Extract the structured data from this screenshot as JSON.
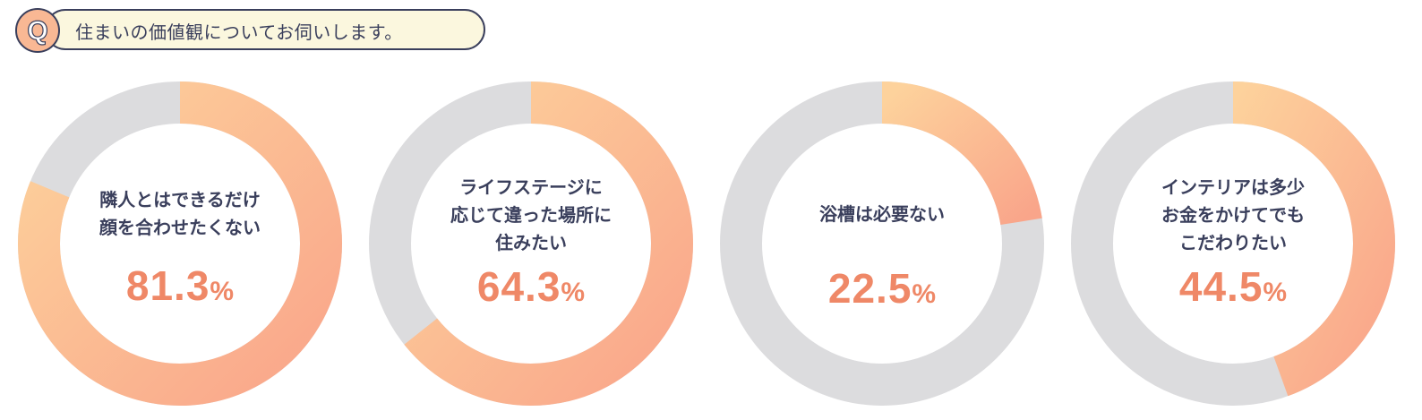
{
  "question": {
    "badge": "Q",
    "text": "住まいの価値観についてお伺いします。"
  },
  "colors": {
    "gradient_start": "#fdd29c",
    "gradient_end": "#f9a58a",
    "track": "#dcdcde",
    "value_text": "#ef8867",
    "label_text": "#3a3f5c"
  },
  "chart_data": [
    {
      "type": "pie",
      "label": "隣人とはできるだけ\n顔を合わせたくない",
      "value": 81.3,
      "display_value": "81.3",
      "unit": "%"
    },
    {
      "type": "pie",
      "label": "ライフステージに\n応じて違った場所に\n住みたい",
      "value": 64.3,
      "display_value": "64.3",
      "unit": "%"
    },
    {
      "type": "pie",
      "label": "浴槽は必要ない",
      "value": 22.5,
      "display_value": "22.5",
      "unit": "%"
    },
    {
      "type": "pie",
      "label": "インテリアは多少\nお金をかけてでも\nこだわりたい",
      "value": 44.5,
      "display_value": "44.5",
      "unit": "%"
    }
  ]
}
